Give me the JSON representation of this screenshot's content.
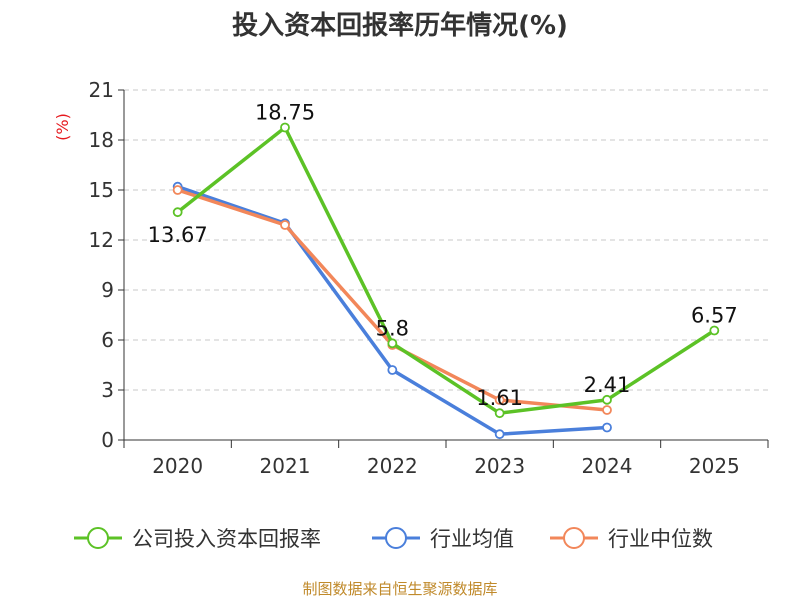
{
  "chart_data": {
    "type": "line",
    "title": "投入资本回报率历年情况(%)",
    "y_unit": "(%)",
    "categories": [
      "2020",
      "2021",
      "2022",
      "2023",
      "2024",
      "2025"
    ],
    "ylim": [
      0,
      21
    ],
    "yticks": [
      0,
      3,
      6,
      9,
      12,
      15,
      18,
      21
    ],
    "grid": true,
    "legend_position": "bottom",
    "series": [
      {
        "name": "公司投入资本回报率",
        "color": "#5cc226",
        "values": [
          13.67,
          18.75,
          5.8,
          1.61,
          2.41,
          6.57
        ],
        "labels": [
          "13.67",
          "18.75",
          "5.8",
          "1.61",
          "2.41",
          "6.57"
        ]
      },
      {
        "name": "行业均值",
        "color": "#4a7fdb",
        "values": [
          15.2,
          13.0,
          4.2,
          0.35,
          0.75,
          null
        ]
      },
      {
        "name": "行业中位数",
        "color": "#f2875a",
        "values": [
          15.0,
          12.9,
          5.7,
          2.4,
          1.8,
          null
        ]
      }
    ],
    "source": "制图数据来自恒生聚源数据库"
  }
}
